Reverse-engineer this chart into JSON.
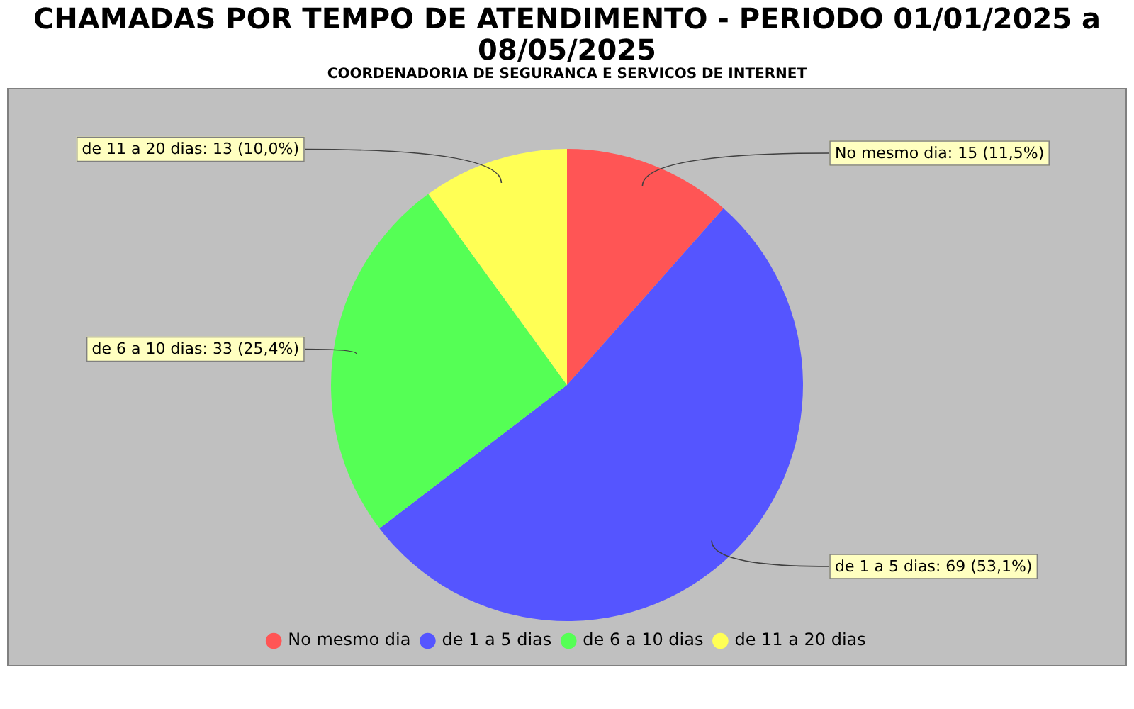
{
  "chart_data": {
    "type": "pie",
    "title": "CHAMADAS POR TEMPO DE ATENDIMENTO - PERIODO 01/01/2025 a 08/05/2025",
    "subtitle": "COORDENADORIA DE SEGURANCA E SERVICOS DE INTERNET",
    "categories": [
      "No mesmo dia",
      "de 1 a 5 dias",
      "de 6 a 10 dias",
      "de 11 a 20 dias"
    ],
    "values": [
      15,
      69,
      33,
      13
    ],
    "colors": [
      "#ff5555",
      "#5555ff",
      "#55ff55",
      "#ffff55"
    ],
    "value_labels": [
      "No mesmo dia: 15 (11,5%)",
      "de 1 a 5 dias: 69 (53,1%)",
      "de 6 a 10 dias: 33 (25,4%)",
      "de 11 a 20 dias: 13 (10,0%)"
    ],
    "legend": "bottom"
  }
}
